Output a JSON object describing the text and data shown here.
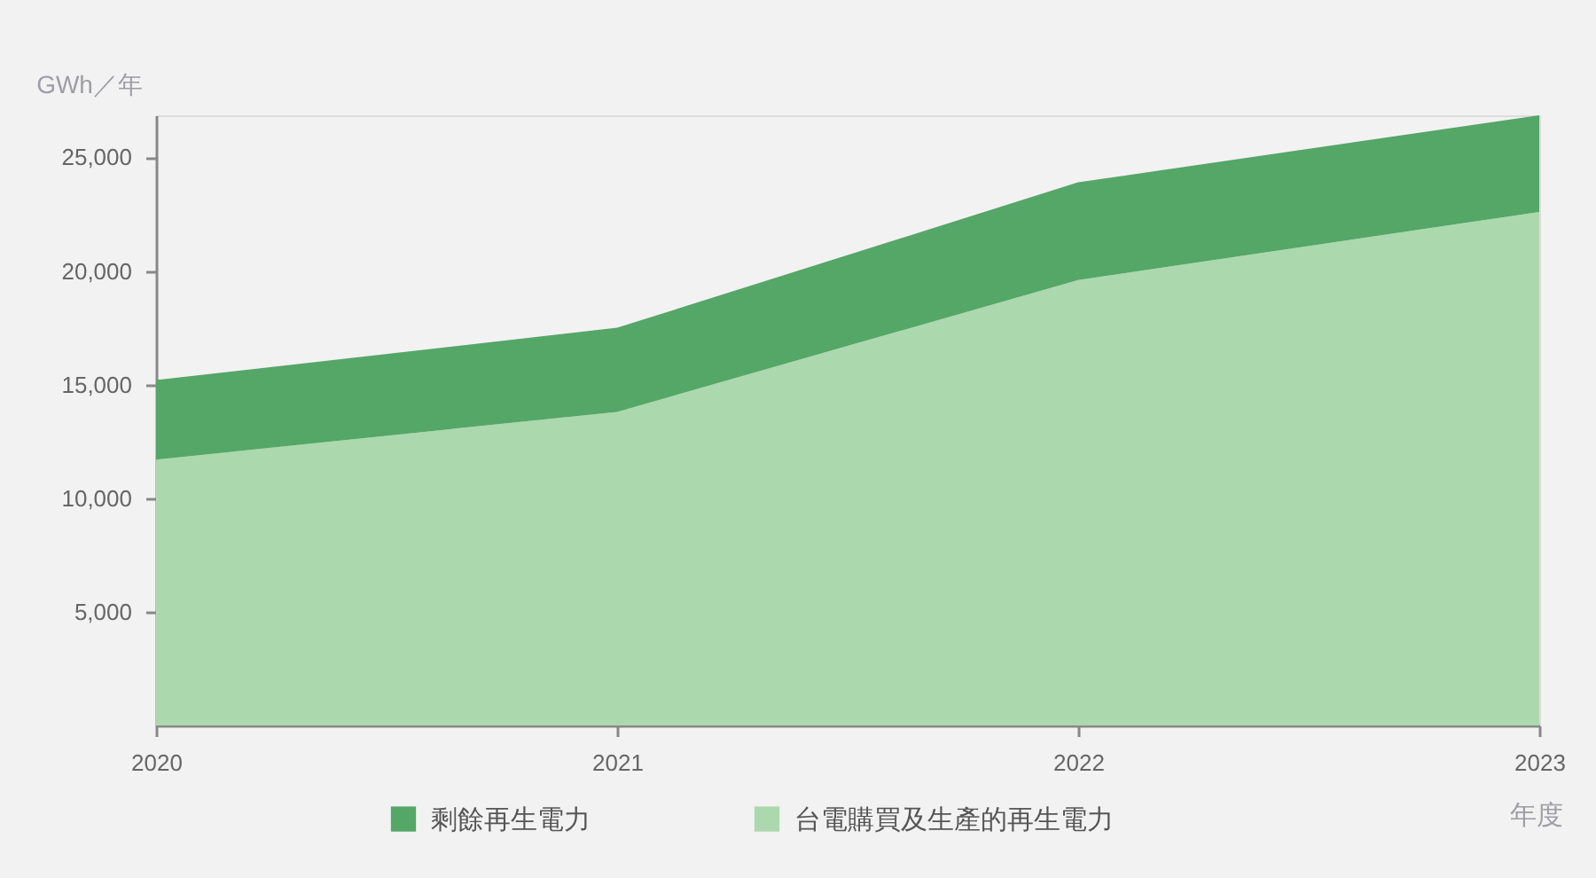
{
  "chart_data": {
    "type": "area",
    "stacked": true,
    "legend": "bottom",
    "grid": false,
    "xlabel": "年度",
    "ylabel": "GWh／年",
    "x": [
      2020,
      2021,
      2022,
      2023
    ],
    "xlim": [
      2020,
      2023
    ],
    "xticks": [
      2020,
      2021,
      2022,
      2023
    ],
    "ylim": [
      0,
      26850
    ],
    "yticks": [
      {
        "value": 5000,
        "label": "5,000"
      },
      {
        "value": 10000,
        "label": "10,000"
      },
      {
        "value": 15000,
        "label": "15,000"
      },
      {
        "value": 20000,
        "label": "20,000"
      },
      {
        "value": 25000,
        "label": "25,000"
      }
    ],
    "series": [
      {
        "name": "台電購買及生產的再生電力",
        "color": "#acd8ad",
        "values": [
          11700,
          13800,
          19600,
          22600
        ]
      },
      {
        "name": "剩餘再生電力",
        "color": "#54a767",
        "values": [
          3500,
          3700,
          4300,
          4250
        ]
      }
    ]
  }
}
